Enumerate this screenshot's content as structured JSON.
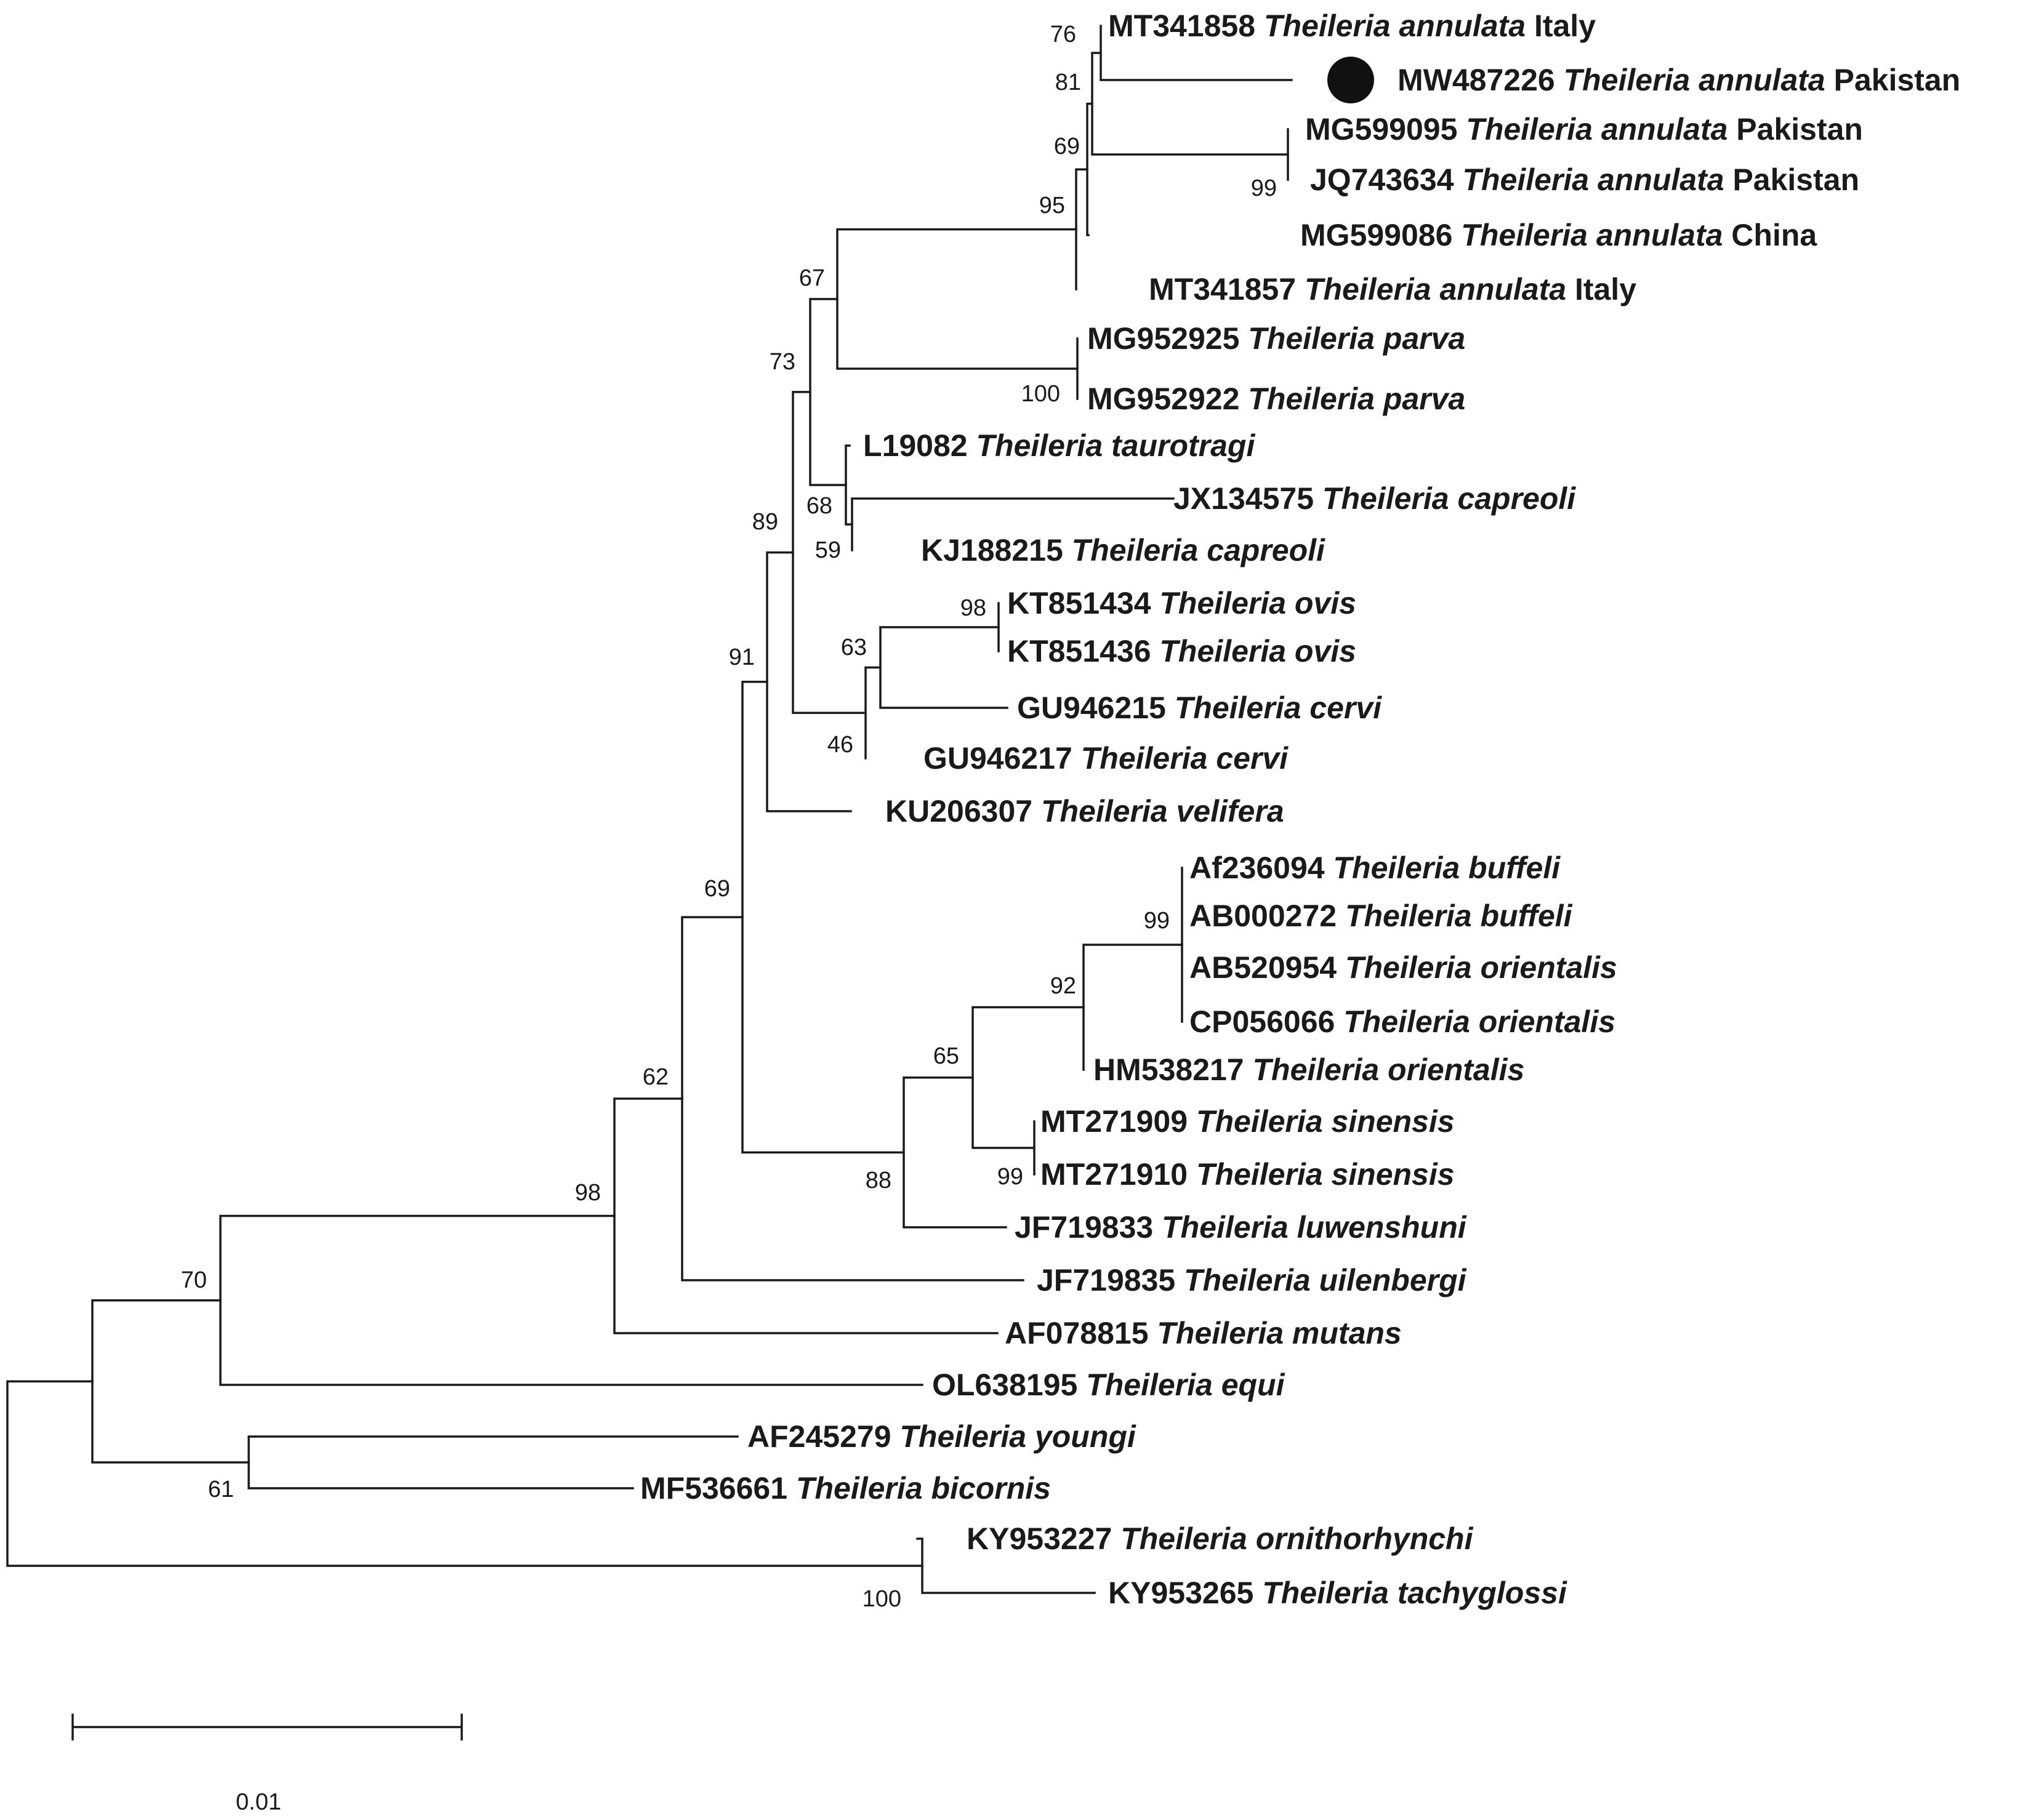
{
  "figure": {
    "type": "phylogenetic tree",
    "highlighted_marker_color": "#111111",
    "scale_bar_label": "0.01",
    "scale_bar_value": 0.01
  },
  "leaves": [
    {
      "accession": "MT341858",
      "species": "Theileria annulata",
      "location": "Italy"
    },
    {
      "accession": "MW487226",
      "species": "Theileria annulata",
      "location": "Pakistan",
      "highlighted": true
    },
    {
      "accession": "MG599095",
      "species": "Theileria annulata",
      "location": "Pakistan"
    },
    {
      "accession": "JQ743634",
      "species": "Theileria annulata",
      "location": "Pakistan"
    },
    {
      "accession": "MG599086",
      "species": "Theileria annulata",
      "location": "China"
    },
    {
      "accession": "MT341857",
      "species": "Theileria annulata",
      "location": "Italy"
    },
    {
      "accession": "MG952925",
      "species": "Theileria parva",
      "location": ""
    },
    {
      "accession": "MG952922",
      "species": "Theileria parva",
      "location": ""
    },
    {
      "accession": "L19082",
      "species": "Theileria taurotragi",
      "location": ""
    },
    {
      "accession": "JX134575",
      "species": "Theileria capreoli",
      "location": ""
    },
    {
      "accession": "KJ188215",
      "species": "Theileria capreoli",
      "location": ""
    },
    {
      "accession": "KT851434",
      "species": "Theileria ovis",
      "location": ""
    },
    {
      "accession": "KT851436",
      "species": "Theileria ovis",
      "location": ""
    },
    {
      "accession": "GU946215",
      "species": "Theileria cervi",
      "location": ""
    },
    {
      "accession": "GU946217",
      "species": "Theileria cervi",
      "location": ""
    },
    {
      "accession": "KU206307",
      "species": "Theileria velifera",
      "location": ""
    },
    {
      "accession": "Af236094",
      "species": "Theileria buffeli",
      "location": ""
    },
    {
      "accession": "AB000272",
      "species": "Theileria buffeli",
      "location": ""
    },
    {
      "accession": "AB520954",
      "species": "Theileria orientalis",
      "location": ""
    },
    {
      "accession": "CP056066",
      "species": "Theileria orientalis",
      "location": ""
    },
    {
      "accession": "HM538217",
      "species": "Theileria orientalis",
      "location": ""
    },
    {
      "accession": "MT271909",
      "species": "Theileria sinensis",
      "location": ""
    },
    {
      "accession": "MT271910",
      "species": "Theileria sinensis",
      "location": ""
    },
    {
      "accession": "JF719833",
      "species": "Theileria luwenshuni",
      "location": ""
    },
    {
      "accession": "JF719835",
      "species": "Theileria uilenbergi",
      "location": ""
    },
    {
      "accession": "AF078815",
      "species": "Theileria mutans",
      "location": ""
    },
    {
      "accession": "OL638195",
      "species": "Theileria equi",
      "location": ""
    },
    {
      "accession": "AF245279",
      "species": "Theileria youngi",
      "location": ""
    },
    {
      "accession": "MF536661",
      "species": "Theileria bicornis",
      "location": ""
    },
    {
      "accession": "KY953227",
      "species": "Theileria ornithorhynchi",
      "location": ""
    },
    {
      "accession": "KY953265",
      "species": "Theileria tachyglossi",
      "location": ""
    }
  ],
  "bootstrap_values": [
    {
      "node": "n76",
      "value": "76"
    },
    {
      "node": "n81",
      "value": "81"
    },
    {
      "node": "n69a",
      "value": "69"
    },
    {
      "node": "n99a",
      "value": "99"
    },
    {
      "node": "n95",
      "value": "95"
    },
    {
      "node": "n67",
      "value": "67"
    },
    {
      "node": "n100a",
      "value": "100"
    },
    {
      "node": "n73",
      "value": "73"
    },
    {
      "node": "n68",
      "value": "68"
    },
    {
      "node": "n59",
      "value": "59"
    },
    {
      "node": "n89",
      "value": "89"
    },
    {
      "node": "n98a",
      "value": "98"
    },
    {
      "node": "n63",
      "value": "63"
    },
    {
      "node": "n46",
      "value": "46"
    },
    {
      "node": "n91",
      "value": "91"
    },
    {
      "node": "n69b",
      "value": "69"
    },
    {
      "node": "n99b",
      "value": "99"
    },
    {
      "node": "n92",
      "value": "92"
    },
    {
      "node": "n65",
      "value": "65"
    },
    {
      "node": "n99c",
      "value": "99"
    },
    {
      "node": "n88",
      "value": "88"
    },
    {
      "node": "n62",
      "value": "62"
    },
    {
      "node": "n98b",
      "value": "98"
    },
    {
      "node": "n70",
      "value": "70"
    },
    {
      "node": "n61",
      "value": "61"
    },
    {
      "node": "n100b",
      "value": "100"
    }
  ]
}
